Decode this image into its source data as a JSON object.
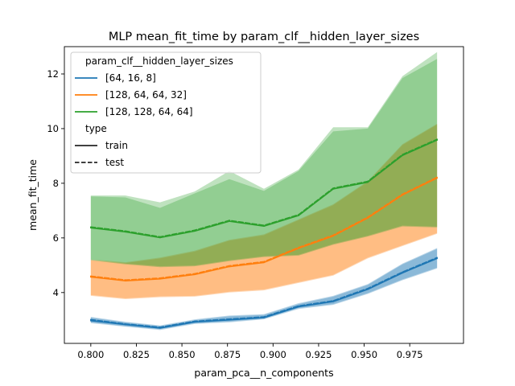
{
  "chart_data": {
    "type": "line",
    "title": "MLP mean_fit_time by param_clf__hidden_layer_sizes",
    "xlabel": "param_pca__n_components",
    "ylabel": "mean_fit_time",
    "xlim": [
      0.7855,
      1.0045
    ],
    "ylim": [
      2.14,
      13.0
    ],
    "x_ticks": [
      0.8,
      0.825,
      0.85,
      0.875,
      0.9,
      0.925,
      0.95,
      0.975
    ],
    "x_tick_labels": [
      "0.800",
      "0.825",
      "0.850",
      "0.875",
      "0.900",
      "0.925",
      "0.950",
      "0.975"
    ],
    "y_ticks": [
      4,
      6,
      8,
      10,
      12
    ],
    "y_tick_labels": [
      "4",
      "6",
      "8",
      "10",
      "12"
    ],
    "grid": false,
    "x": [
      0.8,
      0.819,
      0.838,
      0.857,
      0.876,
      0.895,
      0.914,
      0.933,
      0.952,
      0.971,
      0.99
    ],
    "legend": {
      "placement": "upper-left",
      "hue_title": "param_clf__hidden_layer_sizes",
      "style_title": "type",
      "style_entries": [
        {
          "label": "train",
          "dash": "solid"
        },
        {
          "label": "test",
          "dash": "dashed"
        }
      ]
    },
    "series": [
      {
        "name": "[64, 16, 8]",
        "color": "#1f77b4",
        "train": {
          "values": [
            2.97,
            2.83,
            2.7,
            2.92,
            3.0,
            3.08,
            3.48,
            3.67,
            4.12,
            4.72,
            5.25
          ],
          "lower": [
            2.88,
            2.75,
            2.63,
            2.85,
            2.91,
            3.02,
            3.4,
            3.55,
            3.95,
            4.45,
            4.88
          ],
          "upper": [
            3.08,
            2.91,
            2.77,
            2.99,
            3.13,
            3.18,
            3.58,
            3.85,
            4.28,
            5.03,
            5.6
          ]
        },
        "test": {
          "values": [
            3.01,
            2.85,
            2.73,
            2.95,
            3.03,
            3.11,
            3.51,
            3.7,
            4.15,
            4.75,
            5.28
          ],
          "lower": [
            2.91,
            2.77,
            2.66,
            2.88,
            2.94,
            3.05,
            3.43,
            3.58,
            3.98,
            4.48,
            4.91
          ],
          "upper": [
            3.11,
            2.93,
            2.8,
            3.02,
            3.16,
            3.21,
            3.61,
            3.88,
            4.31,
            5.06,
            5.63
          ]
        }
      },
      {
        "name": "[128, 64, 64, 32]",
        "color": "#ff7f0e",
        "train": {
          "values": [
            4.57,
            4.43,
            4.5,
            4.66,
            4.95,
            5.1,
            5.62,
            6.07,
            6.73,
            7.57,
            8.19
          ],
          "lower": [
            3.88,
            3.76,
            3.83,
            3.85,
            4.0,
            4.08,
            4.35,
            4.62,
            5.25,
            5.7,
            6.15
          ],
          "upper": [
            5.18,
            5.08,
            5.25,
            5.5,
            5.9,
            6.1,
            6.65,
            7.2,
            8.05,
            9.4,
            10.15
          ]
        },
        "test": {
          "values": [
            4.6,
            4.46,
            4.53,
            4.69,
            4.98,
            5.13,
            5.65,
            6.1,
            6.76,
            7.6,
            8.22
          ],
          "lower": [
            3.91,
            3.79,
            3.86,
            3.88,
            4.03,
            4.11,
            4.38,
            4.65,
            5.28,
            5.73,
            6.18
          ],
          "upper": [
            5.21,
            5.11,
            5.28,
            5.53,
            5.93,
            6.13,
            6.68,
            7.23,
            8.08,
            9.43,
            10.18
          ]
        }
      },
      {
        "name": "[128, 128, 64, 64]",
        "color": "#2ca02c",
        "train": {
          "values": [
            6.37,
            6.22,
            6.01,
            6.25,
            6.61,
            6.43,
            6.82,
            7.79,
            8.04,
            9.02,
            9.58
          ],
          "lower": [
            5.18,
            5.03,
            4.93,
            4.96,
            5.15,
            5.3,
            5.35,
            5.75,
            6.05,
            6.42,
            6.38
          ],
          "upper": [
            7.52,
            7.48,
            7.1,
            7.63,
            8.15,
            7.72,
            8.45,
            9.9,
            10.0,
            11.85,
            12.55
          ]
        },
        "test": {
          "values": [
            6.4,
            6.25,
            6.04,
            6.28,
            6.64,
            6.46,
            6.85,
            7.82,
            8.07,
            9.05,
            9.61
          ],
          "lower": [
            5.21,
            5.06,
            4.96,
            4.99,
            5.18,
            5.33,
            5.38,
            5.78,
            6.08,
            6.45,
            6.41
          ],
          "upper": [
            7.55,
            7.55,
            7.3,
            7.7,
            8.45,
            7.8,
            8.5,
            10.05,
            10.05,
            11.92,
            12.8
          ]
        }
      }
    ]
  }
}
